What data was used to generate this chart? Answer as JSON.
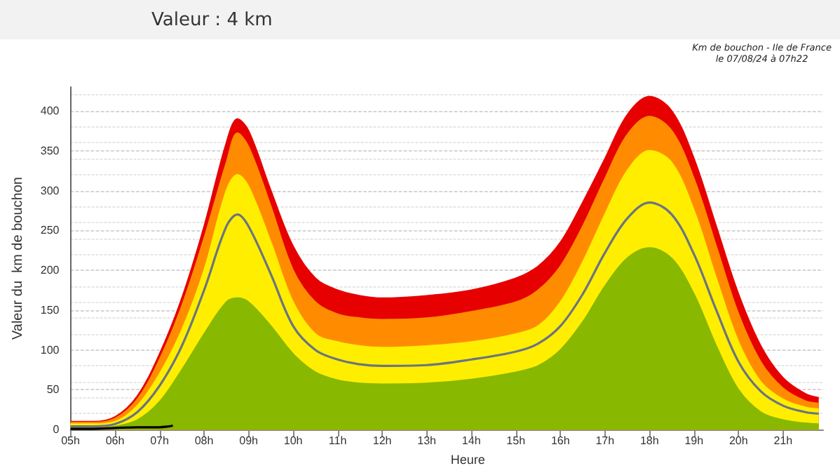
{
  "chart_data": {
    "type": "area",
    "title": "Valeur : 4 km",
    "annotations": [
      "Km de bouchon - Ile de France\nle 07/08/24 à 07h22"
    ],
    "xlabel": "Heure",
    "ylabel": "Valeur du  km de bouchon",
    "x": [
      5,
      5.5,
      6,
      6.5,
      7,
      7.5,
      8,
      8.5,
      8.75,
      9,
      9.5,
      10,
      10.5,
      11,
      11.5,
      12,
      13,
      14,
      15,
      15.5,
      16,
      16.5,
      17,
      17.5,
      18,
      18.5,
      19,
      19.5,
      20,
      20.5,
      21,
      21.5,
      21.8
    ],
    "series": [
      {
        "color": "#e60000",
        "values": [
          10,
          10,
          16,
          42,
          95,
          165,
          255,
          360,
          390,
          375,
          300,
          230,
          190,
          175,
          168,
          165,
          168,
          175,
          190,
          205,
          235,
          285,
          340,
          395,
          418,
          400,
          340,
          255,
          170,
          105,
          65,
          45,
          40
        ]
      },
      {
        "color": "#ff8c00",
        "values": [
          9,
          9,
          14,
          38,
          88,
          155,
          240,
          335,
          372,
          355,
          280,
          200,
          160,
          145,
          140,
          138,
          140,
          148,
          160,
          175,
          205,
          255,
          315,
          370,
          393,
          375,
          315,
          230,
          145,
          85,
          52,
          36,
          33
        ]
      },
      {
        "color": "#ffee00",
        "values": [
          7,
          7,
          10,
          30,
          70,
          125,
          200,
          300,
          320,
          305,
          235,
          160,
          120,
          110,
          105,
          103,
          105,
          110,
          120,
          130,
          160,
          210,
          270,
          325,
          350,
          335,
          275,
          190,
          110,
          60,
          38,
          28,
          26
        ]
      },
      {
        "color": "#88b800",
        "values": [
          2,
          2,
          4,
          12,
          35,
          75,
          120,
          160,
          165,
          160,
          130,
          95,
          72,
          62,
          58,
          57,
          58,
          63,
          72,
          80,
          100,
          135,
          180,
          215,
          228,
          215,
          170,
          105,
          50,
          22,
          12,
          8,
          7
        ]
      },
      {
        "type": "line",
        "color": "#6b7480",
        "values": [
          4,
          4,
          7,
          22,
          55,
          105,
          175,
          255,
          270,
          255,
          195,
          130,
          100,
          88,
          82,
          80,
          81,
          88,
          98,
          108,
          130,
          170,
          222,
          265,
          285,
          270,
          220,
          150,
          85,
          48,
          30,
          22,
          20
        ]
      },
      {
        "type": "line",
        "color": "#000000",
        "x": [
          5,
          5.5,
          6,
          6.5,
          7,
          7.2,
          7.3
        ],
        "values": [
          1,
          1,
          2,
          3,
          3,
          4,
          5
        ]
      }
    ],
    "xlim": [
      5,
      21.9
    ],
    "xticks": [
      {
        "value": 5,
        "label": "05h"
      },
      {
        "value": 6,
        "label": "06h"
      },
      {
        "value": 7,
        "label": "07h"
      },
      {
        "value": 8,
        "label": "08h"
      },
      {
        "value": 9,
        "label": "09h"
      },
      {
        "value": 10,
        "label": "10h"
      },
      {
        "value": 11,
        "label": "11h"
      },
      {
        "value": 12,
        "label": "12h"
      },
      {
        "value": 13,
        "label": "13h"
      },
      {
        "value": 14,
        "label": "14h"
      },
      {
        "value": 15,
        "label": "15h"
      },
      {
        "value": 16,
        "label": "16h"
      },
      {
        "value": 17,
        "label": "17h"
      },
      {
        "value": 18,
        "label": "18h"
      },
      {
        "value": 19,
        "label": "19h"
      },
      {
        "value": 20,
        "label": "20h"
      },
      {
        "value": 21,
        "label": "21h"
      }
    ],
    "ylim": [
      0,
      430
    ],
    "yticks": [
      0,
      50,
      100,
      150,
      200,
      250,
      300,
      350,
      400
    ],
    "grid": "y"
  }
}
